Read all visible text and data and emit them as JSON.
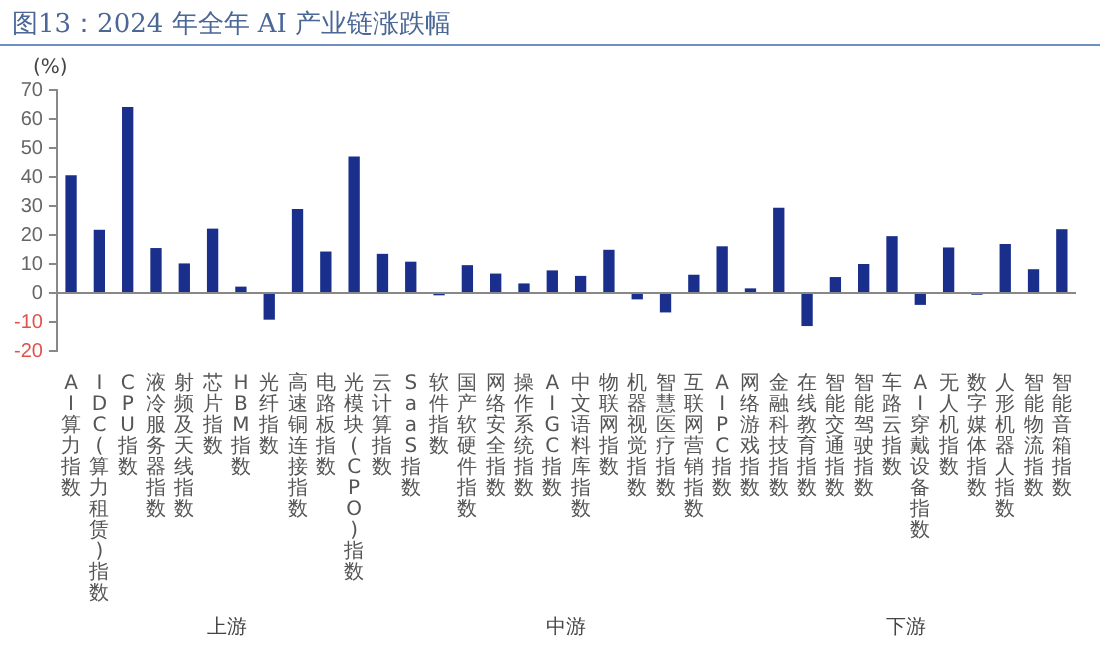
{
  "chart_data": {
    "type": "bar",
    "title": "图13：2024 年全年 AI 产业链涨跌幅",
    "ylabel": "(%)",
    "categories": [
      "AI算力指数",
      "IDC(算力租赁)指数",
      "CPU指数",
      "液冷服务器指数",
      "射频及天线指数",
      "芯片指数",
      "HBM指数",
      "光纤指数",
      "高速铜连接指数",
      "电路板指数",
      "光模块(CPO)指数",
      "云计算指数",
      "SaaS指数",
      "软件指数",
      "国产软硬件指数",
      "网络安全指数",
      "操作系统指数",
      "AIGC指数",
      "中文语料库指数",
      "物联网指数",
      "机器视觉指数",
      "智慧医疗指数",
      "互联网营销指数",
      "AIPC指数",
      "网络游戏指数",
      "金融科技指数",
      "在线教育指数",
      "智能交通指数",
      "智能驾驶指数",
      "车路云指数",
      "AI穿戴设备指数",
      "无人机指数",
      "数字媒体指数",
      "人形机器人指数",
      "智能物流指数",
      "智能音箱指数"
    ],
    "values": [
      40.6,
      21.8,
      64.1,
      15.5,
      10.2,
      22.2,
      2.2,
      -9.2,
      29.0,
      14.3,
      47.1,
      13.5,
      10.8,
      -0.8,
      9.6,
      6.7,
      3.3,
      7.8,
      5.9,
      14.9,
      -2.2,
      -6.7,
      6.3,
      16.1,
      1.6,
      29.4,
      -11.4,
      5.5,
      10.0,
      19.6,
      -4.1,
      15.7,
      -0.6,
      16.9,
      8.2,
      22.0
    ],
    "color": "#1a2e8c",
    "ylim": [
      -20,
      70
    ],
    "yticks": [
      -20,
      -10,
      0,
      10,
      20,
      30,
      40,
      50,
      60,
      70
    ],
    "legend": false,
    "annotations": [
      "上游",
      "中游",
      "下游"
    ]
  }
}
